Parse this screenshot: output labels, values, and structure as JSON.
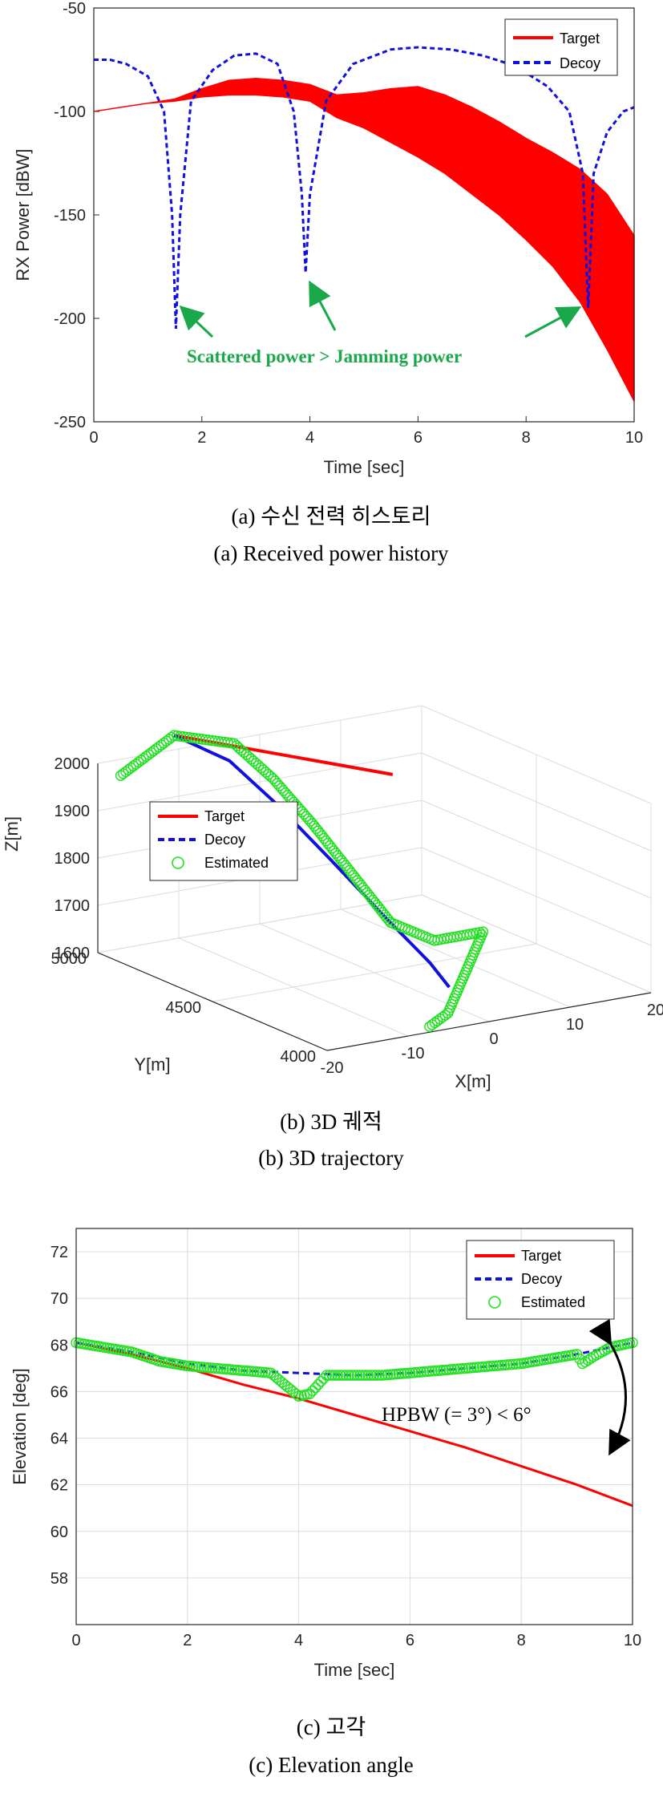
{
  "panels": {
    "a": {
      "caption_ko": "(a) 수신 전력 히스토리",
      "caption_en": "(a) Received power history",
      "xlabel": "Time [sec]",
      "ylabel": "RX Power [dBW]",
      "annotation": "Scattered power > Jamming power",
      "legend": [
        "Target",
        "Decoy"
      ]
    },
    "b": {
      "caption_ko": "(b) 3D 궤적",
      "caption_en": "(b) 3D trajectory",
      "xlabel": "X[m]",
      "ylabel": "Y[m]",
      "zlabel": "Z[m]",
      "legend": [
        "Target",
        "Decoy",
        "Estimated"
      ]
    },
    "c": {
      "caption_ko": "(c) 고각",
      "caption_en": "(c) Elevation angle",
      "xlabel": "Time [sec]",
      "ylabel": "Elevation [deg]",
      "annotation": "HPBW (= 3°) < 6°",
      "legend": [
        "Target",
        "Decoy",
        "Estimated"
      ]
    }
  },
  "colors": {
    "target": "#ff0000",
    "decoy": "#1010e0",
    "estimated": "#22e022",
    "arrow_green": "#1aa84a"
  },
  "chart_data": [
    {
      "type": "line",
      "xlim": [
        0,
        10
      ],
      "ylim": [
        -250,
        -50
      ],
      "xticks": [
        0,
        2,
        4,
        6,
        8,
        10
      ],
      "yticks": [
        -50,
        -100,
        -150,
        -200,
        -250
      ],
      "grid": false,
      "legend_position": "top-right",
      "series": [
        {
          "name": "Target",
          "style": "solid band",
          "x": [
            0,
            0.5,
            1,
            1.5,
            2,
            2.5,
            3,
            3.5,
            4,
            4.5,
            5,
            5.5,
            6,
            6.5,
            7,
            7.5,
            8,
            8.5,
            9,
            9.5,
            10
          ],
          "upper": [
            -100,
            -98,
            -96,
            -94,
            -89,
            -85,
            -84,
            -85,
            -87,
            -92,
            -91,
            -89,
            -88,
            -92,
            -98,
            -105,
            -113,
            -120,
            -128,
            -140,
            -160
          ],
          "lower": [
            -100,
            -98,
            -96,
            -95,
            -93,
            -92,
            -92,
            -93,
            -95,
            -103,
            -108,
            -115,
            -122,
            -130,
            -140,
            -150,
            -162,
            -175,
            -192,
            -215,
            -240
          ]
        },
        {
          "name": "Decoy",
          "style": "dashed",
          "x": [
            0,
            0.3,
            0.6,
            1.0,
            1.3,
            1.45,
            1.52,
            1.6,
            1.8,
            2.2,
            2.6,
            3.0,
            3.4,
            3.7,
            3.85,
            3.92,
            4.0,
            4.3,
            4.8,
            5.5,
            6.0,
            6.6,
            7.2,
            7.8,
            8.4,
            8.8,
            9.05,
            9.15,
            9.25,
            9.5,
            9.8,
            10
          ],
          "y": [
            -75,
            -75,
            -77,
            -83,
            -100,
            -150,
            -205,
            -150,
            -95,
            -80,
            -73,
            -72,
            -77,
            -100,
            -140,
            -178,
            -140,
            -95,
            -77,
            -70,
            -69,
            -70,
            -73,
            -78,
            -88,
            -100,
            -130,
            -195,
            -130,
            -110,
            -100,
            -98
          ]
        }
      ]
    },
    {
      "type": "line3d",
      "xlim": [
        -20,
        20
      ],
      "ylim": [
        4000,
        5000
      ],
      "zlim": [
        1600,
        2000
      ],
      "xticks": [
        -20,
        -10,
        0,
        10,
        20
      ],
      "yticks": [
        4000,
        4500,
        5000
      ],
      "zticks": [
        1600,
        1700,
        1800,
        1900,
        2000
      ],
      "grid": true,
      "legend_position": "left",
      "series": [
        {
          "name": "Target",
          "points": [
            [
              -12,
              4950,
              2045
            ],
            [
              15,
              4950,
              1880
            ]
          ]
        },
        {
          "name": "Decoy",
          "points": [
            [
              -12,
              4950,
              2045
            ],
            [
              -8,
              4850,
              2000
            ],
            [
              -5,
              4750,
              1920
            ],
            [
              -2,
              4620,
              1820
            ],
            [
              1,
              4500,
              1720
            ],
            [
              4,
              4400,
              1630
            ],
            [
              5,
              4350,
              1585
            ]
          ]
        },
        {
          "name": "Estimated",
          "points": [
            [
              -20,
              4900,
              1995
            ],
            [
              -12,
              4950,
              2045
            ],
            [
              -6,
              4900,
              2020
            ],
            [
              -4,
              4800,
              1960
            ],
            [
              -2,
              4700,
              1880
            ],
            [
              0,
              4600,
              1790
            ],
            [
              2,
              4500,
              1700
            ],
            [
              6,
              4450,
              1660
            ],
            [
              12,
              4450,
              1660
            ],
            [
              2,
              4250,
              1560
            ],
            [
              -2,
              4200,
              1550
            ]
          ]
        }
      ]
    },
    {
      "type": "line",
      "xlim": [
        0,
        10
      ],
      "ylim": [
        56,
        73
      ],
      "xticks": [
        0,
        2,
        4,
        6,
        8,
        10
      ],
      "yticks": [
        58,
        60,
        62,
        64,
        66,
        68,
        70,
        72
      ],
      "grid": true,
      "legend_position": "top-right",
      "series": [
        {
          "name": "Target",
          "style": "solid",
          "x": [
            0,
            1,
            2,
            3,
            4,
            5,
            6,
            7,
            8,
            9,
            10
          ],
          "y": [
            68.1,
            67.6,
            67.0,
            66.3,
            65.7,
            65.0,
            64.3,
            63.6,
            62.8,
            62.0,
            61.1
          ]
        },
        {
          "name": "Decoy",
          "style": "dashed",
          "x": [
            0,
            1,
            2,
            3,
            4,
            5,
            6,
            7,
            8,
            9,
            10
          ],
          "y": [
            68.1,
            67.7,
            67.2,
            66.9,
            66.8,
            66.7,
            66.8,
            67.0,
            67.2,
            67.6,
            68.1
          ]
        },
        {
          "name": "Estimated",
          "style": "markers",
          "x": [
            0,
            0.5,
            1,
            1.5,
            2,
            2.5,
            3,
            3.5,
            3.8,
            4.0,
            4.2,
            4.5,
            5,
            5.5,
            6,
            6.5,
            7,
            7.5,
            8,
            8.5,
            9,
            9.1,
            9.3,
            9.6,
            10
          ],
          "y": [
            68.1,
            67.9,
            67.7,
            67.3,
            67.1,
            67.0,
            66.9,
            66.8,
            66.2,
            65.8,
            65.9,
            66.7,
            66.7,
            66.7,
            66.8,
            66.9,
            67.0,
            67.1,
            67.2,
            67.4,
            67.6,
            67.2,
            67.5,
            67.9,
            68.1
          ]
        }
      ]
    }
  ]
}
